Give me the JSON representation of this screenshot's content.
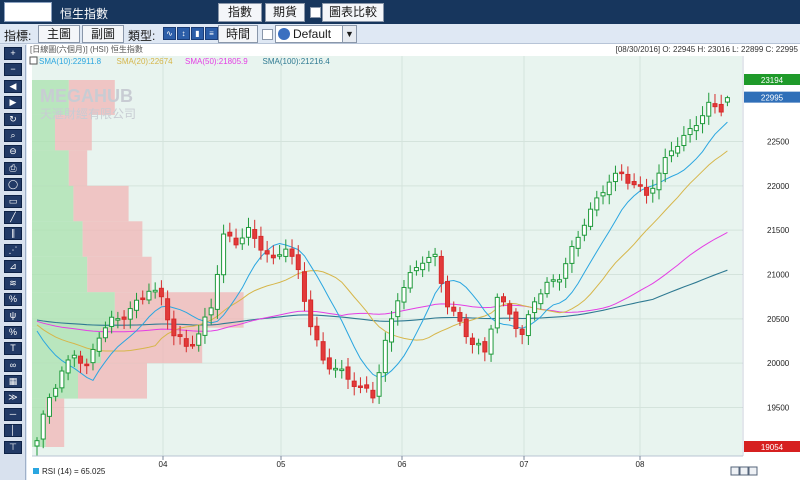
{
  "app": {
    "title": "恒生指數",
    "tabs": [
      "指數",
      "期貨"
    ],
    "compare_label": "圖表比較"
  },
  "toolbar": {
    "indicator_label": "指標:",
    "main_label": "主圖",
    "sub_label": "副圖",
    "type_label": "類型:",
    "type_icons": [
      "line-chart-icon",
      "bar-chart-icon",
      "candlestick-icon"
    ],
    "time_label": "時間",
    "template_value": "Default"
  },
  "sidebar": {
    "buttons": [
      "plus-icon",
      "minus-icon",
      "arrow-left-icon",
      "arrow-right-icon",
      "play-icon",
      "refresh-icon",
      "magnifier-icon",
      "zoom-out-icon",
      "print-icon",
      "ellipse-icon",
      "rectangle-icon",
      "trend-line-icon",
      "channel-icon",
      "fan-icon",
      "gann-icon",
      "fibonacci-icon",
      "pitchfork-icon",
      "percent-icon",
      "text-icon",
      "cycle-icon",
      "grid-icon",
      "speed-icon",
      "horizontal-line-icon",
      "vertical-line-icon",
      "label-icon"
    ]
  },
  "chart": {
    "header_left": "[日線圖(六個月)]   (HSI)  恒生指數",
    "header_right": "[08/30/2016]  O: 22945  H: 23016  L: 22899  C: 22995",
    "watermark_en": "MEGAHUB",
    "watermark_zh": "天滙財經有限公司",
    "legend": [
      {
        "label": "SMA(10):22911.8",
        "color": "#2aa6e0"
      },
      {
        "label": "SMA(20):22674",
        "color": "#d6b64a"
      },
      {
        "label": "SMA(50):21805.9",
        "color": "#e43ee4"
      },
      {
        "label": "SMA(100):21216.4",
        "color": "#2f7a92"
      }
    ],
    "price_tags": [
      {
        "label": "23194",
        "color": "#1f9a2a"
      },
      {
        "label": "22995",
        "color": "#2f6fb8"
      },
      {
        "label": "19054",
        "color": "#d62020"
      }
    ],
    "y_ticks": [
      19500,
      20000,
      20500,
      21000,
      21500,
      22000,
      22500
    ],
    "x_ticks": [
      "04",
      "05",
      "06",
      "07",
      "08"
    ],
    "rsi_label": "RSI (14)  = 65.025"
  },
  "chart_data": {
    "type": "candlestick",
    "symbol": "HSI",
    "title": "恒生指數",
    "period": "日線圖(六個月)",
    "y_range": [
      19054,
      23194
    ],
    "last_bar": {
      "date": "08/30/2016",
      "open": 22945,
      "high": 23016,
      "low": 22899,
      "close": 22995
    },
    "x_ticks": [
      "04",
      "05",
      "06",
      "07",
      "08"
    ],
    "price_anchors": [
      [
        0,
        19100
      ],
      [
        2,
        19600
      ],
      [
        4,
        19900
      ],
      [
        6,
        20150
      ],
      [
        8,
        19950
      ],
      [
        10,
        20300
      ],
      [
        12,
        20450
      ],
      [
        14,
        20550
      ],
      [
        16,
        20700
      ],
      [
        18,
        20850
      ],
      [
        20,
        20700
      ],
      [
        22,
        20300
      ],
      [
        24,
        20200
      ],
      [
        26,
        20350
      ],
      [
        28,
        20650
      ],
      [
        30,
        21400
      ],
      [
        32,
        21350
      ],
      [
        34,
        21500
      ],
      [
        36,
        21350
      ],
      [
        38,
        21150
      ],
      [
        40,
        21300
      ],
      [
        42,
        21000
      ],
      [
        44,
        20450
      ],
      [
        46,
        20050
      ],
      [
        48,
        19950
      ],
      [
        50,
        19800
      ],
      [
        52,
        19700
      ],
      [
        54,
        19650
      ],
      [
        56,
        20250
      ],
      [
        58,
        20750
      ],
      [
        60,
        20950
      ],
      [
        62,
        21150
      ],
      [
        64,
        21200
      ],
      [
        66,
        20700
      ],
      [
        68,
        20450
      ],
      [
        70,
        20200
      ],
      [
        72,
        20100
      ],
      [
        74,
        20750
      ],
      [
        76,
        20600
      ],
      [
        78,
        20300
      ],
      [
        80,
        20700
      ],
      [
        82,
        20850
      ],
      [
        84,
        21000
      ],
      [
        86,
        21300
      ],
      [
        88,
        21600
      ],
      [
        90,
        21800
      ],
      [
        92,
        22050
      ],
      [
        94,
        22150
      ],
      [
        96,
        22050
      ],
      [
        98,
        21900
      ],
      [
        100,
        22100
      ],
      [
        102,
        22400
      ],
      [
        104,
        22550
      ],
      [
        106,
        22750
      ],
      [
        108,
        22900
      ],
      [
        110,
        22850
      ],
      [
        111,
        22995
      ]
    ],
    "volume_profile": [
      {
        "low": 22800,
        "high": 23194,
        "up": 8,
        "down": 10
      },
      {
        "low": 22400,
        "high": 22800,
        "up": 5,
        "down": 8
      },
      {
        "low": 22000,
        "high": 22400,
        "up": 8,
        "down": 4
      },
      {
        "low": 21600,
        "high": 22000,
        "up": 9,
        "down": 12
      },
      {
        "low": 21200,
        "high": 21600,
        "up": 11,
        "down": 13
      },
      {
        "low": 20800,
        "high": 21200,
        "up": 12,
        "down": 14
      },
      {
        "low": 20400,
        "high": 20800,
        "up": 18,
        "down": 28
      },
      {
        "low": 20000,
        "high": 20400,
        "up": 15,
        "down": 22
      },
      {
        "low": 19600,
        "high": 20000,
        "up": 10,
        "down": 15
      },
      {
        "low": 19054,
        "high": 19600,
        "up": 3,
        "down": 4
      }
    ],
    "series": [
      {
        "name": "SMA(10)",
        "last": 22911.8
      },
      {
        "name": "SMA(20)",
        "last": 22674
      },
      {
        "name": "SMA(50)",
        "last": 21805.9
      },
      {
        "name": "SMA(100)",
        "last": 21216.4
      }
    ],
    "rsi": {
      "name": "RSI (14)",
      "value": 65.025
    }
  }
}
